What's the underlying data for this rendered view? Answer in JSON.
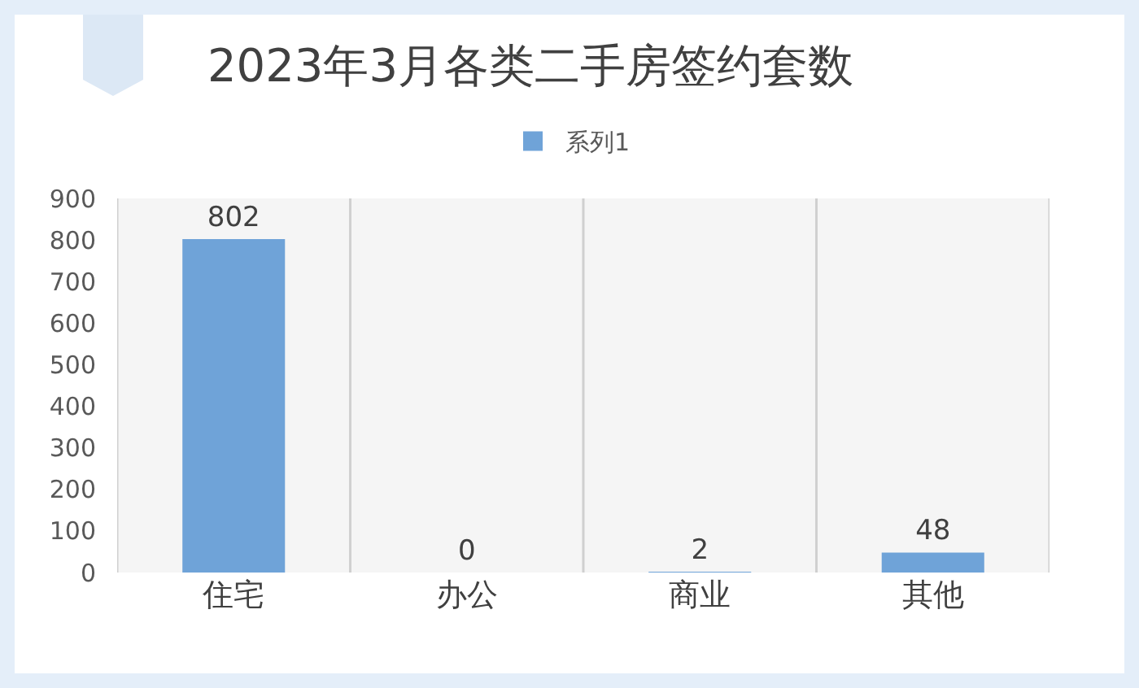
{
  "chart_data": {
    "type": "bar",
    "title": "2023年3月各类二手房签约套数",
    "categories": [
      "住宅",
      "办公",
      "商业",
      "其他"
    ],
    "series": [
      {
        "name": "系列1",
        "color": "#6fa3d8",
        "values": [
          802,
          0,
          2,
          48
        ]
      }
    ],
    "ylim": [
      0,
      900
    ],
    "yticks": [
      0,
      100,
      200,
      300,
      400,
      500,
      600,
      700,
      800,
      900
    ],
    "grid": "x",
    "legend": "top",
    "data_labels": true
  }
}
